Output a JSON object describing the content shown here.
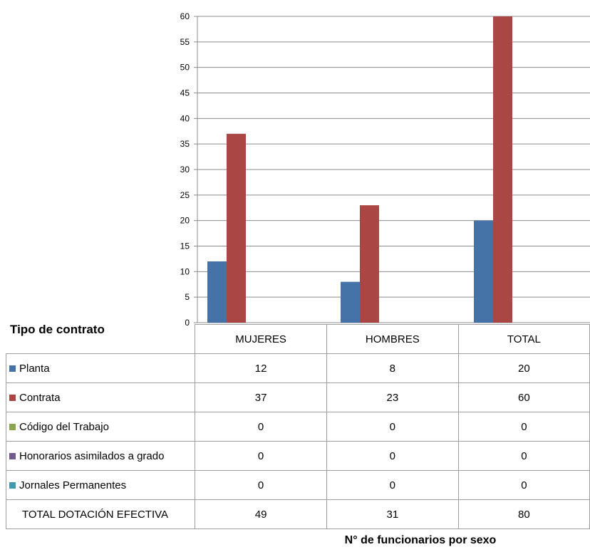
{
  "chart_data": {
    "type": "bar",
    "categories": [
      "MUJERES",
      "HOMBRES",
      "TOTAL"
    ],
    "series": [
      {
        "name": "Planta",
        "color": "#4572a7",
        "values": [
          12,
          8,
          20
        ]
      },
      {
        "name": "Contrata",
        "color": "#aa4643",
        "values": [
          37,
          23,
          60
        ]
      },
      {
        "name": "Código del Trabajo",
        "color": "#89a54e",
        "values": [
          0,
          0,
          0
        ]
      },
      {
        "name": "Honorarios asimilados a grado",
        "color": "#71588f",
        "values": [
          0,
          0,
          0
        ]
      },
      {
        "name": "Jornales Permanentes",
        "color": "#4198af",
        "values": [
          0,
          0,
          0
        ]
      }
    ],
    "totals": {
      "label": "TOTAL DOTACIÓN EFECTIVA",
      "values": [
        49,
        31,
        80
      ]
    },
    "yticks": [
      0,
      5,
      10,
      15,
      20,
      25,
      30,
      35,
      40,
      45,
      50,
      55,
      60
    ],
    "ylim": [
      0,
      60
    ],
    "grid": true,
    "row_header": "Tipo de contrato",
    "title": "N° de funcionarios por sexo"
  }
}
